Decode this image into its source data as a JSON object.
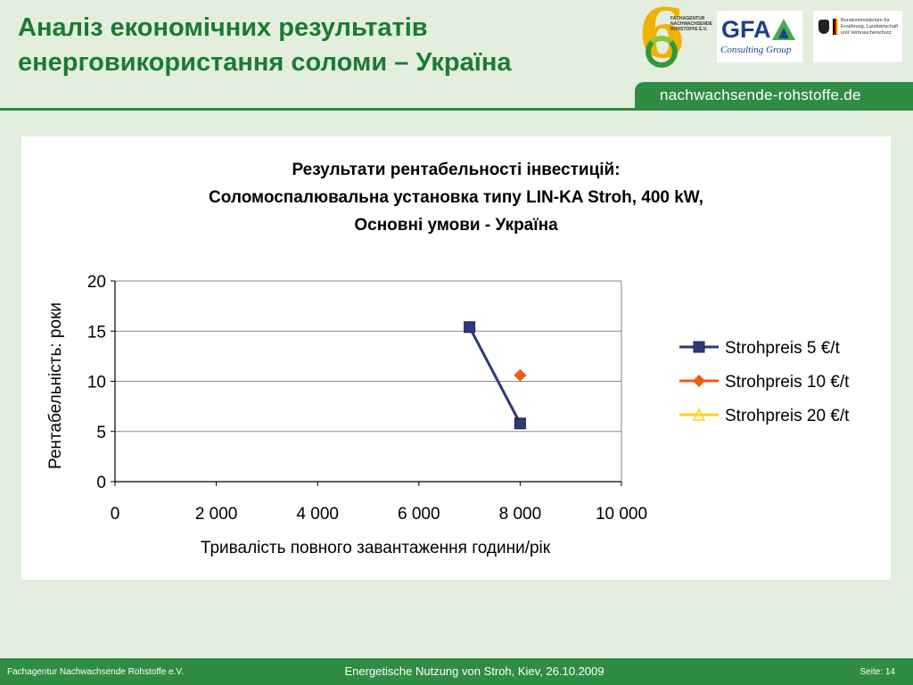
{
  "slide": {
    "title_line1": "Аналіз економічних результатів",
    "title_line2": "енерговикористання соломи – Україна",
    "banner": "nachwachsende-rohstoffe.de",
    "logos": {
      "fnr_text": "Fachagentur Nachwachsende Rohstoffe e.V.",
      "gfa": "GFA",
      "gfa_sub": "Consulting Group",
      "bm_text": "Bundesministerium für Ernährung, Landwirtschaft und Verbraucherschutz"
    },
    "footer": {
      "left": "Fachagentur Nachwachsende Rohstoffe e.V.",
      "center": "Energetische Nutzung von Stroh, Kiev, 26.10.2009",
      "right": "Seite: 14"
    },
    "colors": {
      "title": "#1c7a32",
      "banner": "#2f8d43",
      "background": "#e3eede"
    }
  },
  "chart_data": {
    "type": "line",
    "title": [
      "Результати рентабельності інвестицій:",
      "Соломоспалювальна установка типу LIN-KA Stroh, 400 kW,",
      "Основні умови - Україна"
    ],
    "xlabel": "Тривалість повного завантаження години/рік",
    "ylabel": "Рентабельність:  роки",
    "xlim": [
      0,
      10000
    ],
    "ylim": [
      0,
      20
    ],
    "xticks": [
      0,
      2000,
      4000,
      6000,
      8000,
      10000
    ],
    "xtick_labels": [
      "0",
      "2 000",
      "4 000",
      "6 000",
      "8 000",
      "10 000"
    ],
    "yticks": [
      0,
      5,
      10,
      15,
      20
    ],
    "ytick_labels": [
      "0",
      "5",
      "10",
      "15",
      "20"
    ],
    "grid": "horizontal",
    "legend_position": "right",
    "series": [
      {
        "name": "Strohpreis 5 €/t",
        "color": "#2e3a78",
        "marker": "square",
        "x": [
          7000,
          8000
        ],
        "y": [
          15.4,
          5.8
        ]
      },
      {
        "name": "Strohpreis 10 €/t",
        "color": "#f05a14",
        "marker": "diamond",
        "x": [
          8000
        ],
        "y": [
          10.6
        ]
      },
      {
        "name": "Strohpreis 20 €/t",
        "color": "#ffd21f",
        "marker": "triangle",
        "x": [],
        "y": []
      }
    ]
  }
}
